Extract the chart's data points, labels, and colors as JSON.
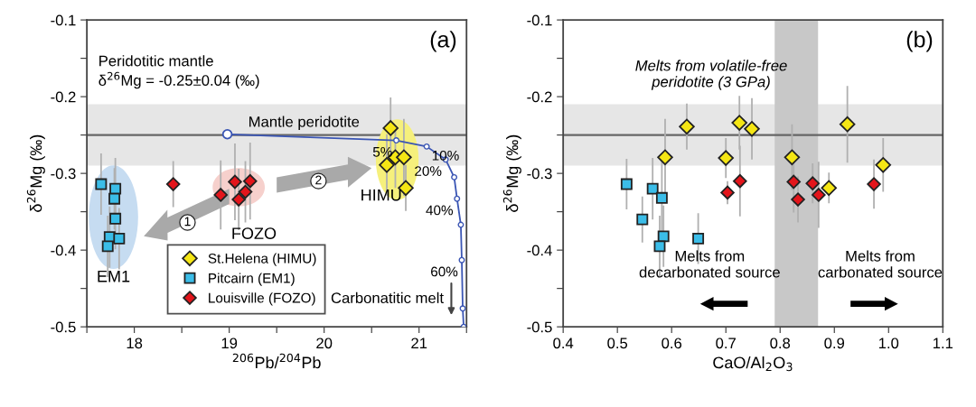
{
  "chart_data": [
    {
      "type": "scatter",
      "xlabel": "$^{206}$Pb/$^{204}$Pb",
      "ylabel": "δ$^{26}$Mg (‰)",
      "xlim": [
        17.5,
        21.5
      ],
      "ylim": [
        -0.5,
        -0.1
      ],
      "xticks": [
        {
          "value": 17.5,
          "label": null
        },
        18,
        {
          "value": 18.5,
          "label": null
        },
        19,
        {
          "value": 19.5,
          "label": null
        },
        20,
        {
          "value": 20.5,
          "label": null
        },
        21,
        {
          "value": 21.5,
          "label": null
        }
      ],
      "yticks": [
        -0.5,
        {
          "value": -0.45,
          "label": null
        },
        -0.4,
        {
          "value": -0.35,
          "label": null
        },
        -0.3,
        {
          "value": -0.25,
          "label": null
        },
        -0.2,
        {
          "value": -0.15,
          "label": null
        },
        -0.1
      ],
      "legend": "bottom",
      "grid": false,
      "series": [
        {
          "type": "line",
          "color": "#3a55b4",
          "marker": "circle",
          "x": [
            18.98,
            20.76,
            21.08,
            21.28,
            21.37,
            21.4,
            21.44,
            21.45,
            21.46,
            21.47
          ],
          "values": [
            -0.249,
            -0.257,
            -0.265,
            -0.282,
            -0.305,
            -0.333,
            -0.367,
            -0.413,
            -0.476,
            -0.5
          ]
        },
        {
          "name": "St.Helena (HIMU)",
          "color": "#f5e614",
          "marker": "diamond",
          "x": [
            20.7,
            20.66,
            20.75,
            20.84,
            20.86
          ],
          "values": [
            -0.241,
            -0.289,
            -0.279,
            -0.279,
            -0.319
          ],
          "errors": [
            0.04,
            0.04,
            0.04,
            0.05,
            0.03
          ]
        },
        {
          "name": "Pitcairn (EM1)",
          "color": "#3bbde8",
          "marker": "square",
          "x": [
            17.65,
            17.8,
            17.79,
            17.8,
            17.74,
            17.84,
            17.72
          ],
          "values": [
            -0.314,
            -0.32,
            -0.333,
            -0.359,
            -0.383,
            -0.385,
            -0.395
          ],
          "errors": [
            0.04,
            0.04,
            0.04,
            0.04,
            0.04,
            0.04,
            0.04
          ]
        },
        {
          "name": "Louisville (FOZO)",
          "color": "#e3151b",
          "marker": "diamond",
          "x": [
            18.41,
            18.91,
            19.06,
            19.22,
            19.17,
            19.1
          ],
          "values": [
            -0.314,
            -0.328,
            -0.311,
            -0.31,
            -0.324,
            -0.334
          ],
          "errors": [
            0.03,
            0.045,
            0.05,
            0.05,
            0.04,
            0.04
          ]
        }
      ],
      "bands": [
        {
          "axis": "y",
          "from": -0.29,
          "to": -0.21,
          "color": "#e6e6e6",
          "label": "Peridotitic mantle\nδ$^{26}$Mg = -0.25±0.04 (‰)"
        }
      ],
      "ref_lines": [
        {
          "axis": "y",
          "value": -0.25,
          "color": "#666666",
          "label": "Mantle peridotite"
        }
      ],
      "annotations": [
        "(a)",
        "EM1",
        "FOZO",
        "HIMU",
        "Carbonatitic melt",
        "1",
        "2",
        {
          "text": "5%",
          "x": 20.76,
          "y": -0.257
        },
        {
          "text": "10%",
          "x": 21.08,
          "y": -0.265
        },
        {
          "text": "20%",
          "x": 21.28,
          "y": -0.282
        },
        {
          "text": "40%",
          "x": 21.4,
          "y": -0.333
        },
        {
          "text": "60%",
          "x": 21.45,
          "y": -0.413
        }
      ]
    },
    {
      "type": "scatter",
      "xlabel": "CaO/Al$_{2}$O$_{3}$",
      "ylabel": "δ$^{26}$Mg (‰)",
      "xlim": [
        0.4,
        1.1
      ],
      "ylim": [
        -0.5,
        -0.1
      ],
      "xticks": [
        0.4,
        0.5,
        0.6,
        0.7,
        0.8,
        0.9,
        {
          "value": 1,
          "label": "1.0"
        },
        1.1
      ],
      "yticks": [
        -0.5,
        {
          "value": -0.45,
          "label": null
        },
        -0.4,
        {
          "value": -0.35,
          "label": null
        },
        -0.3,
        {
          "value": -0.25,
          "label": null
        },
        -0.2,
        {
          "value": -0.15,
          "label": null
        },
        -0.1
      ],
      "grid": false,
      "series": [
        {
          "color": "#f5e614",
          "marker": "diamond",
          "x": [
            0.628,
            0.588,
            0.725,
            0.748,
            0.7,
            0.822,
            0.924,
            0.99,
            0.89
          ],
          "values": [
            -0.239,
            -0.279,
            -0.234,
            -0.242,
            -0.28,
            -0.279,
            -0.236,
            -0.289,
            -0.319
          ],
          "errors": [
            0.03,
            0.05,
            0.035,
            0.04,
            0.026,
            0.043,
            0.05,
            0.035,
            0.02
          ]
        },
        {
          "color": "#3bbde8",
          "marker": "square",
          "x": [
            0.517,
            0.565,
            0.582,
            0.546,
            0.585,
            0.578,
            0.649
          ],
          "values": [
            -0.314,
            -0.32,
            -0.332,
            -0.36,
            -0.382,
            -0.395,
            -0.385
          ],
          "errors": [
            0.033,
            0.04,
            0.05,
            0.03,
            0.04,
            0.04,
            0.033
          ]
        },
        {
          "color": "#e3151b",
          "marker": "diamond",
          "x": [
            0.726,
            0.703,
            0.825,
            0.86,
            0.833,
            0.871,
            0.973
          ],
          "values": [
            -0.31,
            -0.325,
            -0.311,
            -0.313,
            -0.334,
            -0.328,
            -0.314
          ],
          "errors": [
            0.046,
            0.015,
            0.04,
            0.026,
            0.03,
            0.043,
            0.032
          ]
        }
      ],
      "bands": [
        {
          "axis": "y",
          "from": -0.29,
          "to": -0.21,
          "color": "#e6e6e6"
        },
        {
          "axis": "x",
          "from": 0.79,
          "to": 0.87,
          "color": "#c8c8c8",
          "label": "Melts from volatile-free\nperidotite (3 GPa)"
        }
      ],
      "ref_lines": [
        {
          "axis": "y",
          "value": -0.25,
          "color": "#666666"
        }
      ],
      "annotations": [
        "(b)",
        "Melts from\ndecarbonated source",
        "Melts from\ncarbonated source"
      ]
    }
  ]
}
